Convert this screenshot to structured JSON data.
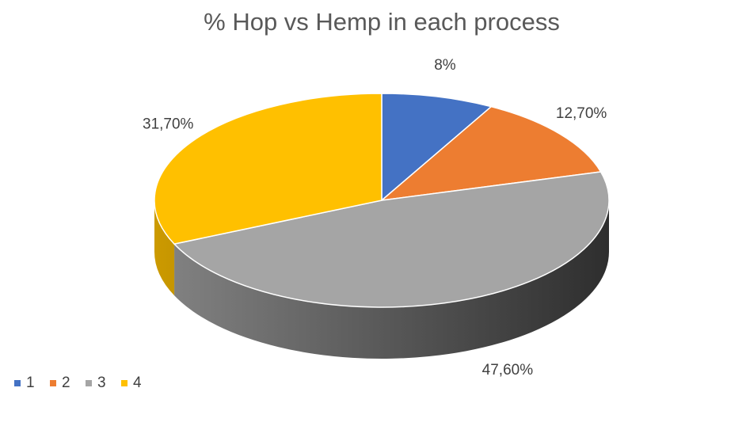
{
  "chart_data": {
    "type": "pie",
    "title": "% Hop vs Hemp in each process",
    "categories": [
      "1",
      "2",
      "3",
      "4"
    ],
    "values": [
      8,
      12.7,
      47.6,
      31.7
    ],
    "value_labels": [
      "8%",
      "12,70%",
      "47,60%",
      "31,70%"
    ],
    "colors": [
      "#4472c4",
      "#ed7d31",
      "#a5a5a5",
      "#ffc000"
    ],
    "legend": "bottom-left"
  }
}
